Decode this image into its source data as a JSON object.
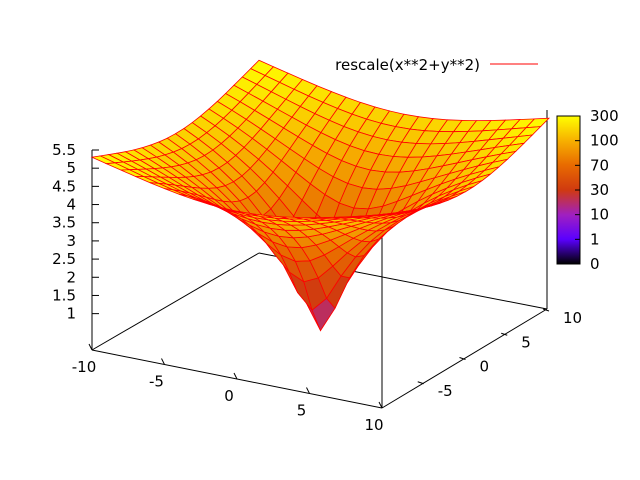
{
  "chart_data": {
    "type": "surface3d",
    "function": "rescale(x**2+y**2)",
    "legend": {
      "label": "rescale(x**2+y**2)",
      "line_color": "#ff0000",
      "position": "top-right"
    },
    "x_axis": {
      "ticks": [
        "-10",
        "-5",
        "0",
        "5",
        "10"
      ],
      "range": [
        -10,
        10
      ]
    },
    "y_axis": {
      "ticks": [
        "-5",
        "0",
        "5",
        "10"
      ],
      "range": [
        -10,
        10
      ]
    },
    "z_axis": {
      "ticks": [
        "1",
        "1.5",
        "2",
        "2.5",
        "3",
        "3.5",
        "4",
        "4.5",
        "5",
        "5.5"
      ],
      "range": [
        0,
        5.5
      ],
      "scale": "log(value)"
    },
    "colorbox": {
      "labels": [
        "0",
        "1",
        "10",
        "30",
        "70",
        "100",
        "300"
      ],
      "palette": [
        "#000000",
        "#5a00ff",
        "#a020c0",
        "#d03a10",
        "#e86a00",
        "#f7b000",
        "#ffff00"
      ]
    },
    "mesh_color": "#ff0000",
    "grid": false
  }
}
